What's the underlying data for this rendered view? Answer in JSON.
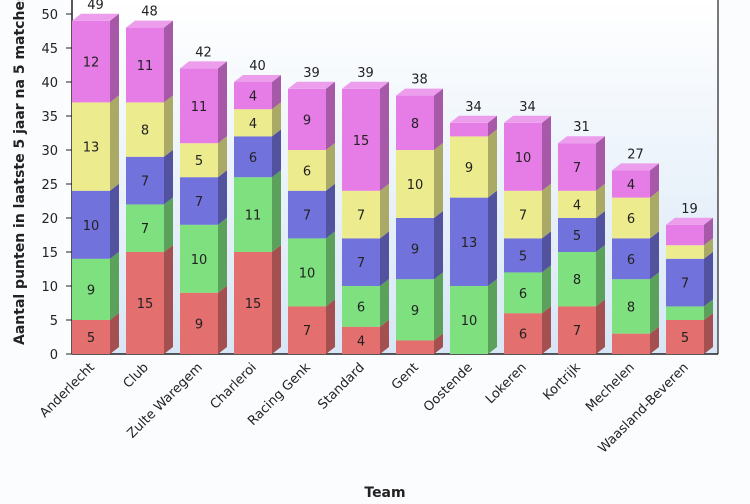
{
  "chart_data": {
    "type": "bar",
    "stacked": true,
    "three_d": true,
    "xlabel": "Team",
    "ylabel": "Aantal punten in laatste 5 jaar na 5 matches",
    "ylim": [
      0,
      50
    ],
    "yticks": [
      0,
      5,
      10,
      15,
      20,
      25,
      30,
      35,
      40,
      45,
      50
    ],
    "grid": false,
    "categories": [
      "Anderlecht",
      "Club",
      "Zulte Waregem",
      "Charleroi",
      "Racing Genk",
      "Standard",
      "Gent",
      "Oostende",
      "Lokeren",
      "Kortrijk",
      "Mechelen",
      "Waasland-Beveren"
    ],
    "totals": [
      49,
      48,
      42,
      40,
      39,
      39,
      38,
      34,
      34,
      31,
      27,
      19
    ],
    "series": [
      {
        "color": "#e46f6f",
        "values": [
          5,
          15,
          9,
          15,
          7,
          4,
          2,
          0,
          6,
          7,
          3,
          5
        ]
      },
      {
        "color": "#7fe07f",
        "values": [
          9,
          7,
          10,
          11,
          10,
          6,
          9,
          10,
          6,
          8,
          8,
          2
        ]
      },
      {
        "color": "#7272dc",
        "values": [
          10,
          7,
          7,
          6,
          7,
          7,
          9,
          13,
          5,
          5,
          6,
          7
        ]
      },
      {
        "color": "#ecec8e",
        "values": [
          13,
          8,
          5,
          4,
          6,
          7,
          10,
          9,
          7,
          4,
          6,
          2
        ]
      },
      {
        "color": "#e67ce6",
        "values": [
          12,
          11,
          11,
          4,
          9,
          15,
          8,
          2,
          10,
          7,
          4,
          3
        ]
      }
    ],
    "segment_labels": [
      [
        "5",
        "9",
        "10",
        "13",
        "12"
      ],
      [
        "15",
        "7",
        "7",
        "8",
        "11"
      ],
      [
        "9",
        "10",
        "7",
        "5",
        "11"
      ],
      [
        "15",
        "11",
        "6",
        "4",
        "4"
      ],
      [
        "7",
        "10",
        "7",
        "6",
        "9"
      ],
      [
        "4",
        "6",
        "7",
        "7",
        "15"
      ],
      [
        "",
        "9",
        "9",
        "10",
        "8"
      ],
      [
        "",
        "10",
        "13",
        "9",
        ""
      ],
      [
        "6",
        "6",
        "5",
        "7",
        "10"
      ],
      [
        "7",
        "8",
        "5",
        "4",
        "7"
      ],
      [
        "",
        "8",
        "6",
        "6",
        "4"
      ],
      [
        "5",
        "",
        "7",
        "",
        ""
      ]
    ]
  }
}
